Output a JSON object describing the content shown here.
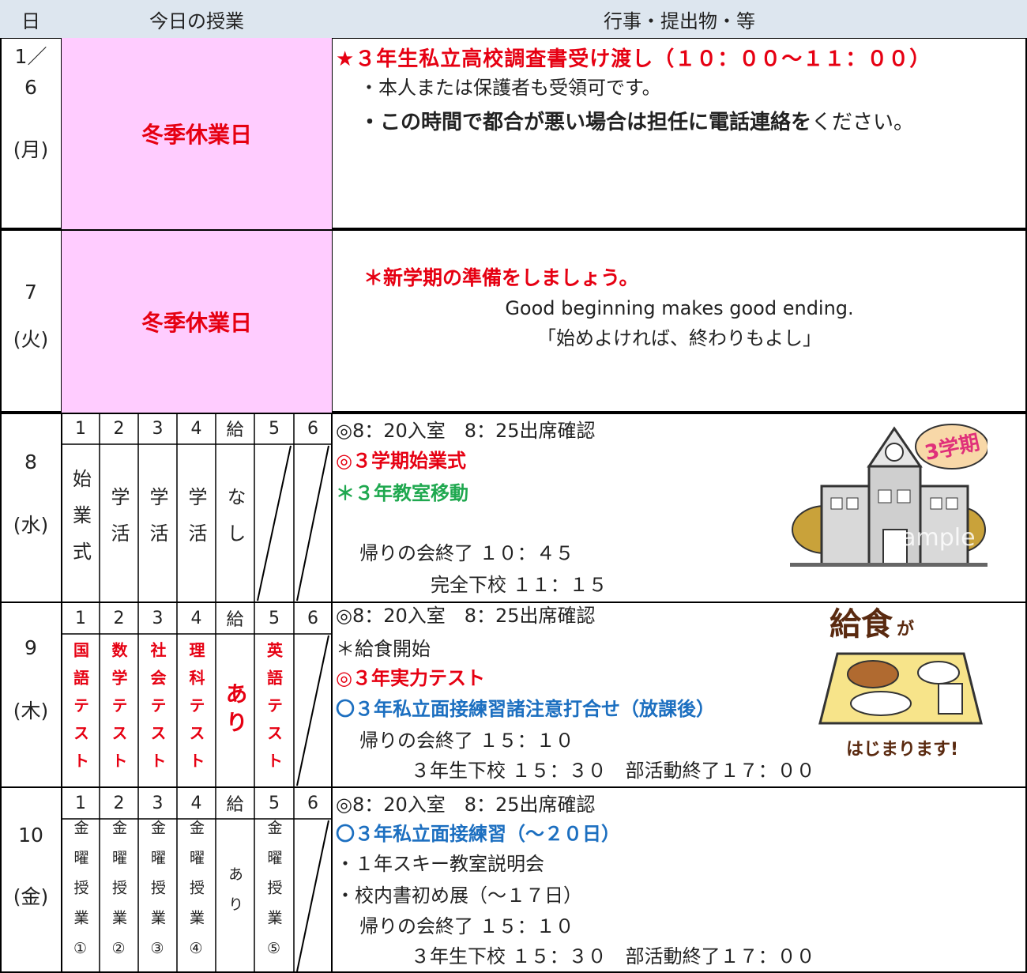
{
  "header": {
    "day": "日",
    "lessons": "今日の授業",
    "events": "行事・提出物・等"
  },
  "days": [
    {
      "date": [
        "1／",
        "6",
        "(月)"
      ],
      "holiday": "冬季休業日",
      "events": [
        "★３年生私立高校調査書受け渡し（１０：００〜１１：００）",
        "・本人または保護者も受領可です。",
        [
          "・この時間で都合が悪い場合は担任に電話連絡を",
          "ください。"
        ]
      ]
    },
    {
      "date": [
        "7",
        "(火)"
      ],
      "holiday": "冬季休業日",
      "events": [
        "＊新学期の準備をしましょう。",
        "Good beginning makes good ending.",
        "「始めよければ、終わりもよし」"
      ]
    },
    {
      "date": [
        "8",
        "(水)"
      ],
      "periods": [
        "1",
        "2",
        "3",
        "4",
        "給",
        "5",
        "6"
      ],
      "lessons": [
        "始業式",
        "学活",
        "学活",
        "学活",
        "なし",
        null,
        null
      ],
      "events": [
        "◎8：20入室　8：25出席確認",
        "◎３学期始業式",
        "＊３年教室移動",
        "帰りの会終了 １０：４５",
        "完全下校 １１：１５"
      ]
    },
    {
      "date": [
        "9",
        "(木)"
      ],
      "periods": [
        "1",
        "2",
        "3",
        "4",
        "給",
        "5",
        "6"
      ],
      "lessons": [
        "国語テスト",
        "数学テスト",
        "社会テスト",
        "理科テスト",
        "あり",
        "英語テスト",
        null
      ],
      "events": [
        "◎8：20入室　8：25出席確認",
        "＊給食開始",
        "◎３年実力テスト",
        "〇３年私立面接練習諸注意打合せ（放課後）",
        "帰りの会終了 １５：１０",
        "３年生下校 １５：３０　部活動終了１７：００"
      ]
    },
    {
      "date": [
        "10",
        "(金)"
      ],
      "periods": [
        "1",
        "2",
        "3",
        "4",
        "給",
        "5",
        "6"
      ],
      "lessons": [
        "金曜授業①",
        "金曜授業②",
        "金曜授業③",
        "金曜授業④",
        "あり",
        "金曜授業⑤",
        null
      ],
      "events": [
        "◎8：20入室　8：25出席確認",
        "〇３年私立面接練習（〜２０日）",
        "・１年スキー教室説明会",
        "・校内書初め展（〜１７日）",
        "帰りの会終了 １５：１０",
        "３年生下校 １５：３０　部活動終了１７：００"
      ]
    }
  ],
  "illustrations": {
    "school_badge": "3学期",
    "watermark": "sample",
    "lunch_title": "給食",
    "lunch_particle": "が",
    "lunch_caption": "はじまります!"
  }
}
